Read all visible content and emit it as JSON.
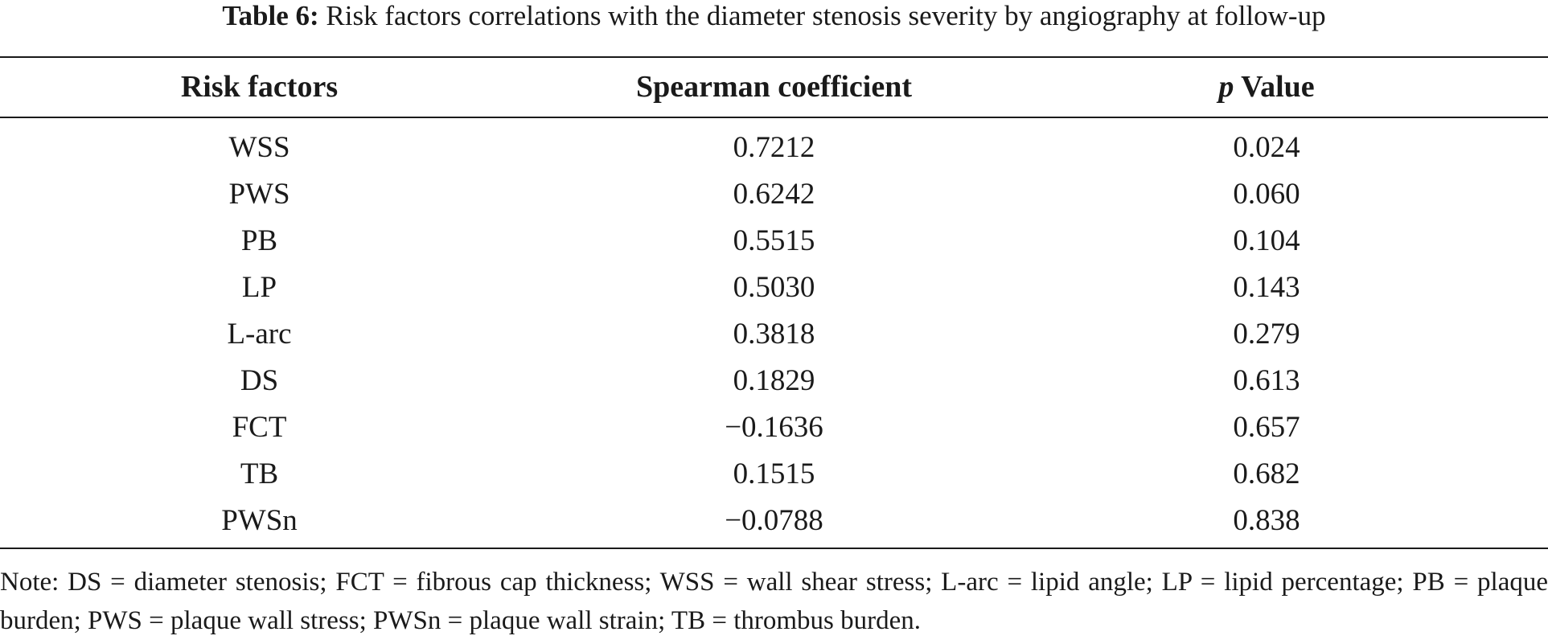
{
  "caption": {
    "label": "Table 6:",
    "text": " Risk factors correlations with the diameter stenosis severity by angiography at follow-up"
  },
  "table": {
    "headers": {
      "risk_factors": "Risk factors",
      "spearman": "Spearman coefficient",
      "p_symbol": "p",
      "p_rest": " Value"
    },
    "rows": [
      {
        "factor": "WSS",
        "coefficient": "0.7212",
        "p": "0.024"
      },
      {
        "factor": "PWS",
        "coefficient": "0.6242",
        "p": "0.060"
      },
      {
        "factor": "PB",
        "coefficient": "0.5515",
        "p": "0.104"
      },
      {
        "factor": "LP",
        "coefficient": "0.5030",
        "p": "0.143"
      },
      {
        "factor": "L-arc",
        "coefficient": "0.3818",
        "p": "0.279"
      },
      {
        "factor": "DS",
        "coefficient": "0.1829",
        "p": "0.613"
      },
      {
        "factor": "FCT",
        "coefficient": "−0.1636",
        "p": "0.657"
      },
      {
        "factor": "TB",
        "coefficient": "0.1515",
        "p": "0.682"
      },
      {
        "factor": "PWSn",
        "coefficient": "−0.0788",
        "p": "0.838"
      }
    ]
  },
  "note": "Note: DS = diameter stenosis; FCT = fibrous cap thickness; WSS = wall shear stress; L-arc = lipid angle; LP = lipid percentage; PB = plaque burden; PWS = plaque wall stress; PWSn = plaque wall strain; TB = thrombus burden."
}
